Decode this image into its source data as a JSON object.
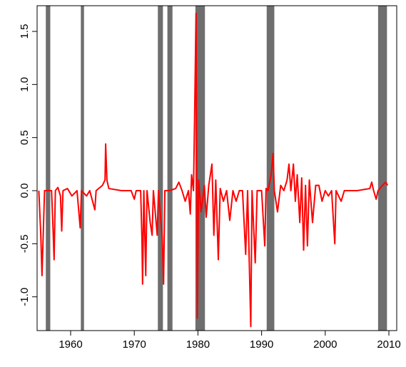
{
  "chart_data": {
    "type": "line",
    "x": [
      1955.0,
      1955.3,
      1955.5,
      1955.7,
      1955.9,
      1956.5,
      1957.0,
      1957.2,
      1957.4,
      1957.6,
      1958.0,
      1958.4,
      1958.6,
      1958.8,
      1959.5,
      1960.2,
      1961.0,
      1961.5,
      1961.7,
      1962.5,
      1963.0,
      1963.8,
      1964.0,
      1965.0,
      1965.4,
      1965.5,
      1965.7,
      1966.0,
      1968.0,
      1969.5,
      1970.0,
      1970.3,
      1971.0,
      1971.2,
      1971.3,
      1971.5,
      1971.8,
      1972.0,
      1972.5,
      1972.8,
      1973.0,
      1973.6,
      1973.8,
      1974.4,
      1974.6,
      1974.8,
      1975.5,
      1976.5,
      1977.0,
      1977.5,
      1978.0,
      1978.5,
      1978.8,
      1979.0,
      1979.3,
      1979.5,
      1979.7,
      1979.9,
      1980.1,
      1980.5,
      1981.0,
      1981.3,
      1981.7,
      1982.2,
      1982.5,
      1982.8,
      1983.2,
      1983.5,
      1984.0,
      1984.5,
      1985.0,
      1985.5,
      1986.0,
      1986.5,
      1987.0,
      1987.5,
      1987.8,
      1988.3,
      1988.5,
      1989.0,
      1989.3,
      1990.0,
      1990.5,
      1990.7,
      1991.0,
      1991.5,
      1991.8,
      1992.0,
      1992.5,
      1993.0,
      1993.5,
      1994.0,
      1994.3,
      1994.6,
      1995.0,
      1995.3,
      1995.6,
      1996.0,
      1996.3,
      1996.6,
      1996.9,
      1997.2,
      1997.5,
      1998.0,
      1998.5,
      1999.0,
      1999.5,
      2000.0,
      2000.5,
      2001.0,
      2001.5,
      2001.7,
      2002.5,
      2003.0,
      2005.0,
      2006.0,
      2007.0,
      2007.3,
      2007.6,
      2008.0,
      2008.3,
      2009.0,
      2009.5,
      2009.8
    ],
    "series": [
      {
        "color": "#ff0000",
        "values": [
          0.0,
          -0.4,
          -0.8,
          -0.4,
          0.0,
          0.0,
          0.0,
          -0.3,
          -0.65,
          0.0,
          0.03,
          -0.05,
          -0.38,
          0.0,
          0.02,
          -0.05,
          0.0,
          -0.35,
          0.0,
          -0.05,
          0.0,
          -0.18,
          0.0,
          0.05,
          0.1,
          0.44,
          0.1,
          0.02,
          0.0,
          0.0,
          -0.08,
          0.0,
          0.0,
          -0.45,
          -0.88,
          0.0,
          -0.8,
          0.0,
          -0.3,
          -0.42,
          0.0,
          -0.42,
          0.0,
          -0.45,
          -0.88,
          0.0,
          0.0,
          0.02,
          0.08,
          0.0,
          -0.1,
          0.0,
          -0.22,
          0.15,
          0.0,
          0.8,
          1.67,
          -1.2,
          0.1,
          -0.2,
          0.05,
          -0.25,
          0.05,
          0.25,
          -0.42,
          0.1,
          -0.65,
          0.02,
          -0.1,
          0.0,
          -0.28,
          0.0,
          -0.1,
          0.0,
          0.0,
          -0.6,
          0.0,
          -1.28,
          0.0,
          -0.68,
          0.0,
          0.0,
          -0.52,
          0.02,
          0.0,
          0.15,
          0.35,
          0.0,
          -0.2,
          0.05,
          0.0,
          0.1,
          0.25,
          0.0,
          0.25,
          -0.1,
          0.15,
          -0.3,
          0.12,
          -0.56,
          0.05,
          -0.52,
          0.1,
          -0.3,
          0.05,
          0.05,
          -0.1,
          0.0,
          -0.05,
          0.0,
          -0.5,
          0.0,
          -0.1,
          0.0,
          0.0,
          0.01,
          0.02,
          0.08,
          0.0,
          -0.08,
          0.0,
          0.05,
          0.08,
          0.05
        ]
      }
    ],
    "shaded_regions": [
      [
        1956.1,
        1956.8
      ],
      [
        1961.6,
        1962.1
      ],
      [
        1973.7,
        1974.5
      ],
      [
        1975.2,
        1976.0
      ],
      [
        1979.6,
        1981.1
      ],
      [
        1990.8,
        1992.0
      ],
      [
        2008.3,
        2009.7
      ]
    ],
    "shade_color": "#6e6e6e",
    "xlim": [
      1954.73,
      2011.23
    ],
    "ylim": [
      -1.318,
      1.742
    ],
    "xticks": [
      1960,
      1970,
      1980,
      1990,
      2000,
      2010
    ],
    "yticks": [
      {
        "value": -1.0,
        "label": "-1.0"
      },
      -0.5,
      {
        "value": 0.0,
        "label": "0.0"
      },
      0.5,
      {
        "value": 1.0,
        "label": "1.0"
      },
      1.5
    ]
  }
}
